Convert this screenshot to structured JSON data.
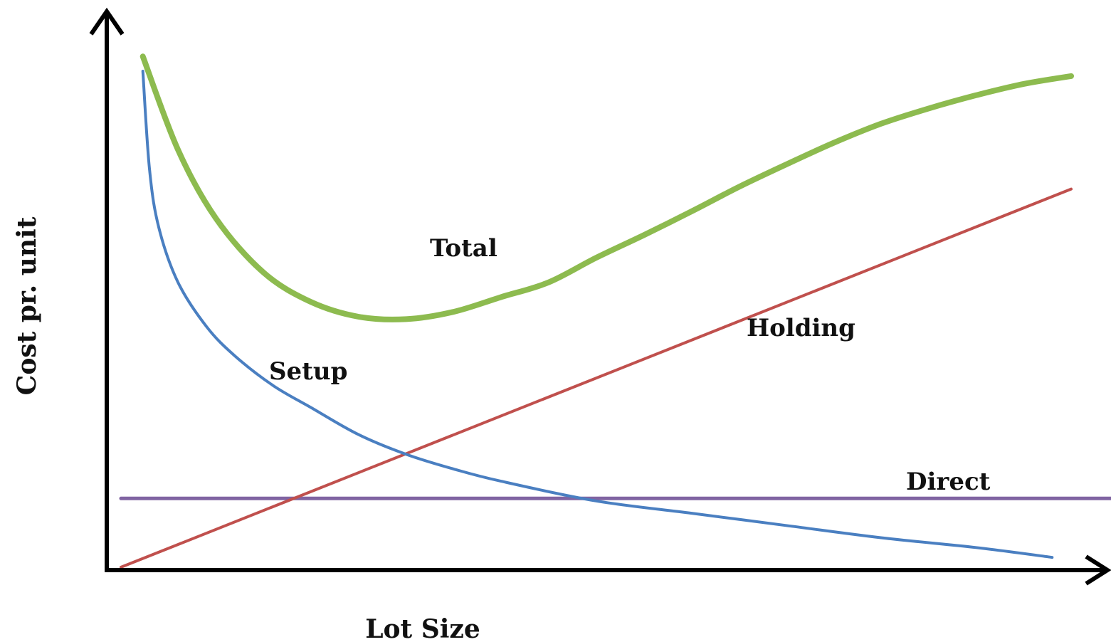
{
  "chart_data": {
    "type": "line",
    "title": "",
    "xlabel": "Lot Size",
    "ylabel": "Cost pr. unit",
    "xlim": [
      0,
      100
    ],
    "ylim": [
      0,
      100
    ],
    "grid": false,
    "legend": "inline",
    "series": [
      {
        "name": "Total",
        "color": "#8dbb4f",
        "points": [
          [
            2.3,
            103
          ],
          [
            6,
            84
          ],
          [
            10,
            70
          ],
          [
            15,
            59
          ],
          [
            20,
            53
          ],
          [
            25,
            50
          ],
          [
            30,
            49.5
          ],
          [
            35,
            51
          ],
          [
            40,
            54
          ],
          [
            45,
            57
          ],
          [
            50,
            62
          ],
          [
            55,
            66.6
          ],
          [
            60,
            71.4
          ],
          [
            65,
            76.4
          ],
          [
            70,
            81
          ],
          [
            75,
            85.4
          ],
          [
            80,
            89.3
          ],
          [
            85,
            92.4
          ],
          [
            90,
            95.1
          ],
          [
            95,
            97.4
          ],
          [
            100,
            99
          ]
        ]
      },
      {
        "name": "Setup",
        "color": "#4a7fc1",
        "points": [
          [
            2.3,
            100
          ],
          [
            3,
            80
          ],
          [
            4,
            68
          ],
          [
            6,
            57
          ],
          [
            9,
            48
          ],
          [
            12,
            42
          ],
          [
            16,
            36
          ],
          [
            20,
            31.5
          ],
          [
            25,
            26
          ],
          [
            30,
            22
          ],
          [
            35,
            19
          ],
          [
            40,
            16.5
          ],
          [
            50,
            12.5
          ],
          [
            60,
            10
          ],
          [
            70,
            7.5
          ],
          [
            80,
            5
          ],
          [
            90,
            3
          ],
          [
            98,
            1
          ]
        ]
      },
      {
        "name": "Holding",
        "color": "#c0504d",
        "points": [
          [
            0,
            -1
          ],
          [
            100,
            76
          ]
        ]
      },
      {
        "name": "Direct",
        "color": "#8064a2",
        "points": [
          [
            0,
            13
          ],
          [
            105,
            13
          ]
        ]
      }
    ]
  }
}
